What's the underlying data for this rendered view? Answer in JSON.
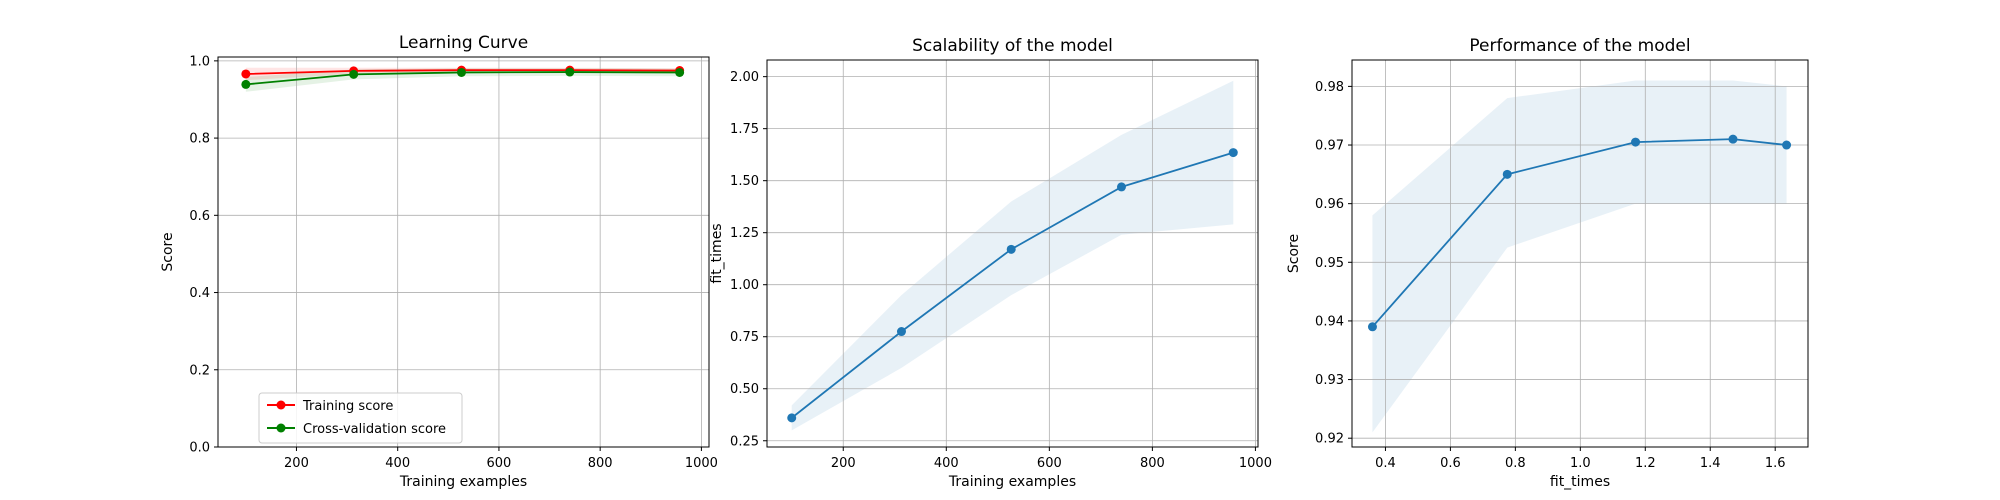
{
  "chart_data": [
    {
      "type": "line",
      "title": "Learning Curve",
      "xlabel": "Training examples",
      "ylabel": "Score",
      "xlim": [
        45,
        1015
      ],
      "ylim": [
        0.0,
        1.01
      ],
      "xticks": [
        200,
        400,
        600,
        800,
        1000
      ],
      "yticks": [
        0.0,
        0.2,
        0.4,
        0.6,
        0.8,
        1.0
      ],
      "xtick_labels": [
        "200",
        "400",
        "600",
        "800",
        "1000"
      ],
      "ytick_labels": [
        "0.0",
        "0.2",
        "0.4",
        "0.6",
        "0.8",
        "1.0"
      ],
      "grid": true,
      "legend_position": "lower-left",
      "x": [
        100,
        313,
        526,
        740,
        957
      ],
      "series": [
        {
          "name": "Training score",
          "color": "#ff0000",
          "values": [
            0.966,
            0.974,
            0.976,
            0.976,
            0.975
          ],
          "band_lower": [
            0.95,
            0.966,
            0.97,
            0.97,
            0.969
          ],
          "band_upper": [
            0.982,
            0.982,
            0.982,
            0.982,
            0.981
          ]
        },
        {
          "name": "Cross-validation score",
          "color": "#008000",
          "values": [
            0.939,
            0.965,
            0.97,
            0.971,
            0.97
          ],
          "band_lower": [
            0.92,
            0.952,
            0.96,
            0.961,
            0.96
          ],
          "band_upper": [
            0.958,
            0.978,
            0.981,
            0.981,
            0.98
          ]
        }
      ]
    },
    {
      "type": "line",
      "title": "Scalability of the model",
      "xlabel": "Training examples",
      "ylabel": "fit_times",
      "xlim": [
        52,
        1005
      ],
      "ylim": [
        0.22,
        2.08
      ],
      "xticks": [
        200,
        400,
        600,
        800,
        1000
      ],
      "yticks": [
        0.25,
        0.5,
        0.75,
        1.0,
        1.25,
        1.5,
        1.75,
        2.0
      ],
      "xtick_labels": [
        "200",
        "400",
        "600",
        "800",
        "1000"
      ],
      "ytick_labels": [
        "0.25",
        "0.50",
        "0.75",
        "1.00",
        "1.25",
        "1.50",
        "1.75",
        "2.00"
      ],
      "grid": true,
      "x": [
        100,
        313,
        526,
        740,
        957
      ],
      "series": [
        {
          "color": "#1f77b4",
          "band_color": "#1f77b4",
          "values": [
            0.36,
            0.775,
            1.17,
            1.47,
            1.635
          ],
          "band_lower": [
            0.3,
            0.6,
            0.95,
            1.24,
            1.29
          ],
          "band_upper": [
            0.42,
            0.95,
            1.4,
            1.72,
            1.98
          ]
        }
      ]
    },
    {
      "type": "line",
      "title": "Performance of the model",
      "xlabel": "fit_times",
      "ylabel": "Score",
      "xlim": [
        0.297,
        1.701
      ],
      "ylim": [
        0.9185,
        0.9845
      ],
      "xticks": [
        0.4,
        0.6,
        0.8,
        1.0,
        1.2,
        1.4,
        1.6
      ],
      "yticks": [
        0.92,
        0.93,
        0.94,
        0.95,
        0.96,
        0.97,
        0.98
      ],
      "xtick_labels": [
        "0.4",
        "0.6",
        "0.8",
        "1.0",
        "1.2",
        "1.4",
        "1.6"
      ],
      "ytick_labels": [
        "0.92",
        "0.93",
        "0.94",
        "0.95",
        "0.96",
        "0.97",
        "0.98"
      ],
      "grid": true,
      "x": [
        0.36,
        0.775,
        1.17,
        1.47,
        1.635
      ],
      "series": [
        {
          "color": "#1f77b4",
          "band_color": "#1f77b4",
          "values": [
            0.939,
            0.965,
            0.9705,
            0.971,
            0.97
          ],
          "band_lower": [
            0.921,
            0.9525,
            0.96,
            0.96,
            0.96
          ],
          "band_upper": [
            0.958,
            0.978,
            0.981,
            0.981,
            0.98
          ]
        }
      ]
    }
  ]
}
